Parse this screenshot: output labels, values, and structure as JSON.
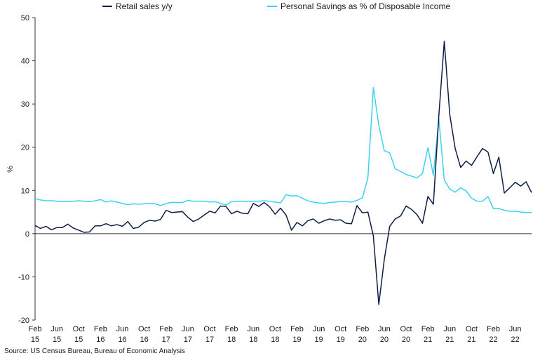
{
  "chart_data": {
    "type": "line",
    "ylabel": "%",
    "ylim": [
      -20,
      50
    ],
    "yticks": [
      -20,
      -10,
      0,
      10,
      20,
      30,
      40,
      50
    ],
    "x_start": "2015-02",
    "x_labels": [
      {
        "index": 0,
        "month": "Feb",
        "year": "15"
      },
      {
        "index": 4,
        "month": "Jun",
        "year": "15"
      },
      {
        "index": 8,
        "month": "Oct",
        "year": "15"
      },
      {
        "index": 12,
        "month": "Feb",
        "year": "16"
      },
      {
        "index": 16,
        "month": "Jun",
        "year": "16"
      },
      {
        "index": 20,
        "month": "Oct",
        "year": "16"
      },
      {
        "index": 24,
        "month": "Feb",
        "year": "17"
      },
      {
        "index": 28,
        "month": "Jun",
        "year": "17"
      },
      {
        "index": 32,
        "month": "Oct",
        "year": "17"
      },
      {
        "index": 36,
        "month": "Feb",
        "year": "18"
      },
      {
        "index": 40,
        "month": "Jun",
        "year": "18"
      },
      {
        "index": 44,
        "month": "Oct",
        "year": "18"
      },
      {
        "index": 48,
        "month": "Feb",
        "year": "19"
      },
      {
        "index": 52,
        "month": "Jun",
        "year": "19"
      },
      {
        "index": 56,
        "month": "Oct",
        "year": "19"
      },
      {
        "index": 60,
        "month": "Feb",
        "year": "20"
      },
      {
        "index": 64,
        "month": "Jun",
        "year": "20"
      },
      {
        "index": 68,
        "month": "Oct",
        "year": "20"
      },
      {
        "index": 72,
        "month": "Feb",
        "year": "21"
      },
      {
        "index": 76,
        "month": "Jun",
        "year": "21"
      },
      {
        "index": 80,
        "month": "Oct",
        "year": "21"
      },
      {
        "index": 84,
        "month": "Feb",
        "year": "22"
      },
      {
        "index": 88,
        "month": "Jun",
        "year": "22"
      }
    ],
    "legend_position": "top",
    "grid": false,
    "series": [
      {
        "name": "Retail sales y/y",
        "color": "#0e1e46",
        "values": [
          1.9,
          1.2,
          1.7,
          0.9,
          1.4,
          1.4,
          2.2,
          1.3,
          0.8,
          0.3,
          0.4,
          1.8,
          1.8,
          2.3,
          1.8,
          2.1,
          1.7,
          2.8,
          1.2,
          1.5,
          2.6,
          3.1,
          2.9,
          3.3,
          5.4,
          4.9,
          5.0,
          5.1,
          3.8,
          2.8,
          3.4,
          4.3,
          5.2,
          4.8,
          6.4,
          6.3,
          4.6,
          5.2,
          4.7,
          4.6,
          7.0,
          6.3,
          7.2,
          6.2,
          4.5,
          5.9,
          4.3,
          0.8,
          2.6,
          1.8,
          3.0,
          3.4,
          2.4,
          3.0,
          3.4,
          3.1,
          3.2,
          2.4,
          2.3,
          6.5,
          4.8,
          5.0,
          -0.5,
          -16.4,
          -6.0,
          1.7,
          3.4,
          4.1,
          6.4,
          5.6,
          4.4,
          2.4,
          8.6,
          6.8,
          27.3,
          44.5,
          27.6,
          19.7,
          15.3,
          16.8,
          15.8,
          17.8,
          19.7,
          18.9,
          13.9,
          17.7,
          9.4,
          10.6,
          11.9,
          11.0,
          12.0,
          9.5
        ]
      },
      {
        "name": "Personal Savings as % of Disposable Income",
        "color": "#3cd2ee",
        "values": [
          8.1,
          7.8,
          7.6,
          7.6,
          7.5,
          7.4,
          7.4,
          7.5,
          7.6,
          7.5,
          7.4,
          7.6,
          7.9,
          7.3,
          7.6,
          7.3,
          7.0,
          6.7,
          6.9,
          6.8,
          6.9,
          7.0,
          6.9,
          6.5,
          7.0,
          7.2,
          7.2,
          7.2,
          7.7,
          7.5,
          7.5,
          7.5,
          7.3,
          7.4,
          7.0,
          6.6,
          7.4,
          7.5,
          7.5,
          7.4,
          7.5,
          7.5,
          7.6,
          7.5,
          7.3,
          7.1,
          9.0,
          8.7,
          8.8,
          8.2,
          7.6,
          7.3,
          7.1,
          7.0,
          7.2,
          7.3,
          7.4,
          7.4,
          7.3,
          7.7,
          8.3,
          12.9,
          33.8,
          25.1,
          19.2,
          18.7,
          15.0,
          14.4,
          13.7,
          13.3,
          12.9,
          13.9,
          19.9,
          13.5,
          26.6,
          12.4,
          10.3,
          9.6,
          10.6,
          9.9,
          8.2,
          7.5,
          7.5,
          8.6,
          5.8,
          5.8,
          5.4,
          5.2,
          5.2,
          5.0,
          4.9,
          4.9
        ]
      }
    ]
  },
  "source_text": "Source: US Census Bureau, Bureau of Economic Analysis"
}
